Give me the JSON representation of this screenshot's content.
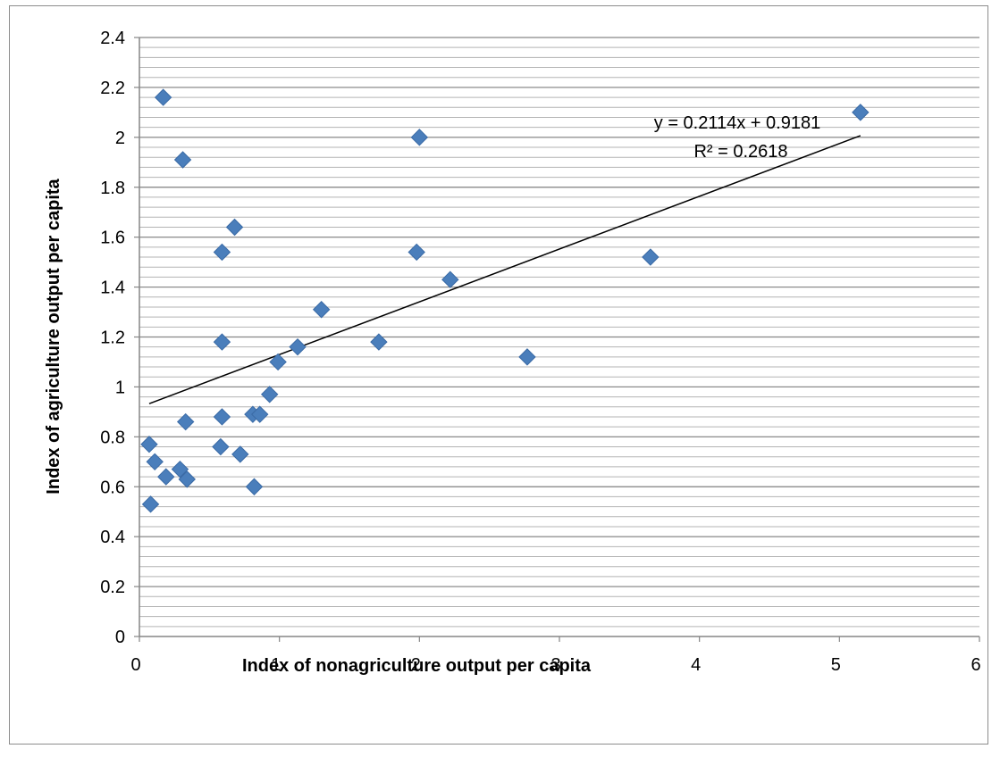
{
  "chart_data": {
    "type": "scatter",
    "title": "",
    "xlabel": "Index of nonagriculture output per capita",
    "ylabel": "Index of agriculture output per capita",
    "xlim": [
      0,
      6
    ],
    "ylim": [
      0,
      2.4
    ],
    "x_ticks": [
      "0",
      "1",
      "2",
      "3",
      "4",
      "5",
      "6"
    ],
    "y_ticks": [
      "0",
      "0.2",
      "0.4",
      "0.6",
      "0.8",
      "1",
      "1.2",
      "1.4",
      "1.6",
      "1.8",
      "2",
      "2.2",
      "2.4"
    ],
    "y_major_step": 0.2,
    "y_minor_step": 0.04,
    "grid": true,
    "marker": "diamond",
    "marker_color": "#4a7ebb",
    "points": [
      {
        "x": 0.07,
        "y": 0.77
      },
      {
        "x": 0.08,
        "y": 0.53
      },
      {
        "x": 0.11,
        "y": 0.7
      },
      {
        "x": 0.17,
        "y": 2.16
      },
      {
        "x": 0.19,
        "y": 0.64
      },
      {
        "x": 0.29,
        "y": 0.67
      },
      {
        "x": 0.31,
        "y": 1.91
      },
      {
        "x": 0.33,
        "y": 0.86
      },
      {
        "x": 0.34,
        "y": 0.63
      },
      {
        "x": 0.58,
        "y": 0.76
      },
      {
        "x": 0.59,
        "y": 1.54
      },
      {
        "x": 0.59,
        "y": 1.18
      },
      {
        "x": 0.59,
        "y": 0.88
      },
      {
        "x": 0.68,
        "y": 1.64
      },
      {
        "x": 0.72,
        "y": 0.73
      },
      {
        "x": 0.81,
        "y": 0.89
      },
      {
        "x": 0.82,
        "y": 0.6
      },
      {
        "x": 0.86,
        "y": 0.89
      },
      {
        "x": 0.93,
        "y": 0.97
      },
      {
        "x": 0.99,
        "y": 1.1
      },
      {
        "x": 1.13,
        "y": 1.16
      },
      {
        "x": 1.3,
        "y": 1.31
      },
      {
        "x": 1.71,
        "y": 1.18
      },
      {
        "x": 1.98,
        "y": 1.54
      },
      {
        "x": 2.0,
        "y": 2.0
      },
      {
        "x": 2.22,
        "y": 1.43
      },
      {
        "x": 2.77,
        "y": 1.12
      },
      {
        "x": 3.65,
        "y": 1.52
      },
      {
        "x": 5.15,
        "y": 2.1
      }
    ],
    "trendline": {
      "type": "linear",
      "slope": 0.2114,
      "intercept": 0.9181,
      "x_range": [
        0.07,
        5.15
      ],
      "color": "#000000",
      "equation_label": "y = 0.2114x + 0.9181",
      "r2_label": "R² = 0.2618"
    }
  }
}
